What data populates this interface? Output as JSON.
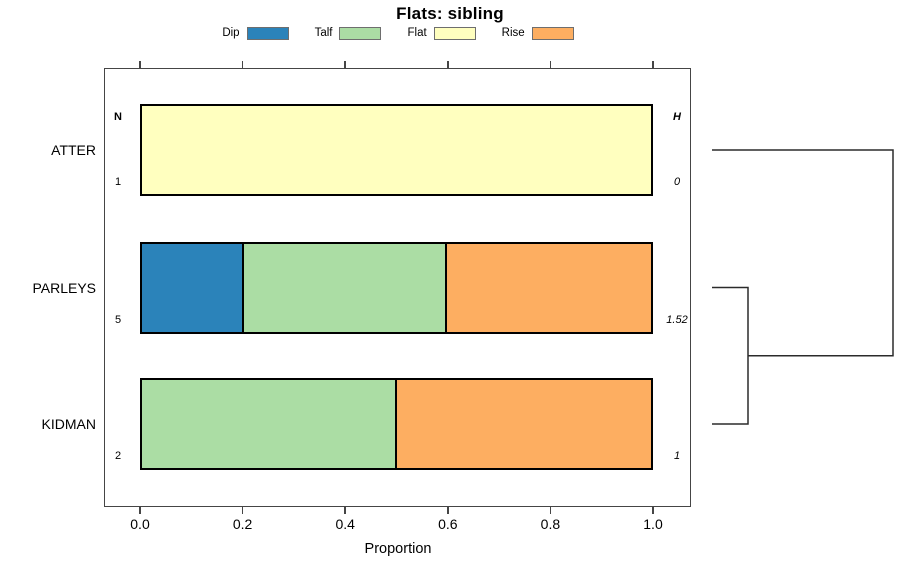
{
  "page": {
    "title": "Flats: sibling"
  },
  "legend": {
    "position": "top-center",
    "items": [
      {
        "label": "Dip",
        "color": "#2B83BA"
      },
      {
        "label": "Talf",
        "color": "#ABDDA4"
      },
      {
        "label": "Flat",
        "color": "#FFFFBF"
      },
      {
        "label": "Rise",
        "color": "#FDAE61"
      }
    ]
  },
  "axis": {
    "xlabel": "Proportion",
    "tick_labels": [
      "0.0",
      "0.2",
      "0.4",
      "0.6",
      "0.8",
      "1.0"
    ],
    "tick_values": [
      0,
      0.2,
      0.4,
      0.6,
      0.8,
      1.0
    ]
  },
  "chart_data": {
    "type": "bar",
    "orientation": "horizontal-stacked",
    "title": "Flats: sibling",
    "xlabel": "Proportion",
    "xlim": [
      0,
      1
    ],
    "grid": false,
    "legend_position": "top",
    "categories": [
      "ATTER",
      "PARLEYS",
      "KIDMAN"
    ],
    "series": [
      {
        "name": "Dip",
        "color": "#2B83BA",
        "values": [
          0,
          0.2,
          0
        ]
      },
      {
        "name": "Talf",
        "color": "#ABDDA4",
        "values": [
          0,
          0.4,
          0.5
        ]
      },
      {
        "name": "Flat",
        "color": "#FFFFBF",
        "values": [
          1.0,
          0,
          0
        ]
      },
      {
        "name": "Rise",
        "color": "#FDAE61",
        "values": [
          0,
          0.4,
          0.5
        ]
      }
    ],
    "n_header": "N",
    "h_header": "H",
    "n_values": [
      "1",
      "5",
      "2"
    ],
    "h_values": [
      "0",
      "1.52",
      "1"
    ],
    "dendrogram": {
      "side": "right",
      "leaves": [
        "ATTER",
        "PARLEYS",
        "KIDMAN"
      ],
      "merges": [
        {
          "members": [
            "PARLEYS",
            "KIDMAN"
          ],
          "relative_height": "low"
        },
        {
          "members": [
            "PARLEYS+KIDMAN",
            "ATTER"
          ],
          "relative_height": "high"
        }
      ]
    },
    "colors": {
      "bar_border": "#000000",
      "axis_box": "#454545",
      "dendrogram_line": "#2b2b2b",
      "background": "#ffffff"
    }
  }
}
